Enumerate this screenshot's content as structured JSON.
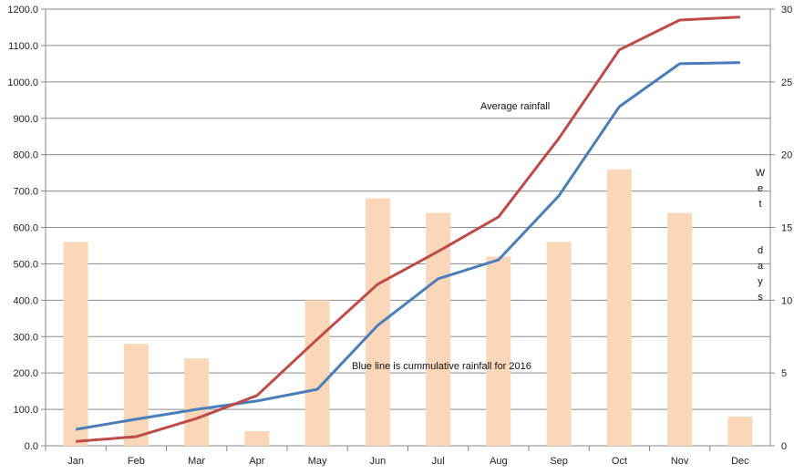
{
  "chart_data": {
    "type": "bar+line",
    "categories": [
      "Jan",
      "Feb",
      "Mar",
      "Apr",
      "May",
      "Jun",
      "Jul",
      "Aug",
      "Sep",
      "Oct",
      "Nov",
      "Dec"
    ],
    "y_left": {
      "ylim": [
        0,
        1200
      ],
      "step": 100,
      "ticks": [
        "0.0",
        "100.0",
        "200.0",
        "300.0",
        "400.0",
        "500.0",
        "600.0",
        "700.0",
        "800.0",
        "900.0",
        "1000.0",
        "1100.0",
        "1200.0"
      ]
    },
    "y_right": {
      "ylim": [
        0,
        30
      ],
      "step": 5,
      "ticks": [
        "0",
        "5",
        "10",
        "15",
        "20",
        "25",
        "30"
      ],
      "label": "Wet  days"
    },
    "grid": true,
    "bars": {
      "axis": "right",
      "color": "#FAD7B8",
      "values": [
        14,
        7,
        6,
        1,
        10,
        17,
        16,
        13,
        14,
        19,
        16,
        2
      ]
    },
    "series": [
      {
        "axis": "left",
        "color": "#4A7EBB",
        "values": [
          45,
          73,
          100,
          123,
          155,
          331,
          459,
          511,
          687,
          932,
          1050,
          1053
        ]
      },
      {
        "axis": "left",
        "color": "#BE4B48",
        "values": [
          12,
          25,
          75,
          138,
          293,
          444,
          534,
          629,
          845,
          1088,
          1170,
          1178
        ]
      }
    ],
    "annotations": {
      "average": "Average rainfall",
      "blue": "Blue line is cummulative rainfall for 2016"
    }
  }
}
